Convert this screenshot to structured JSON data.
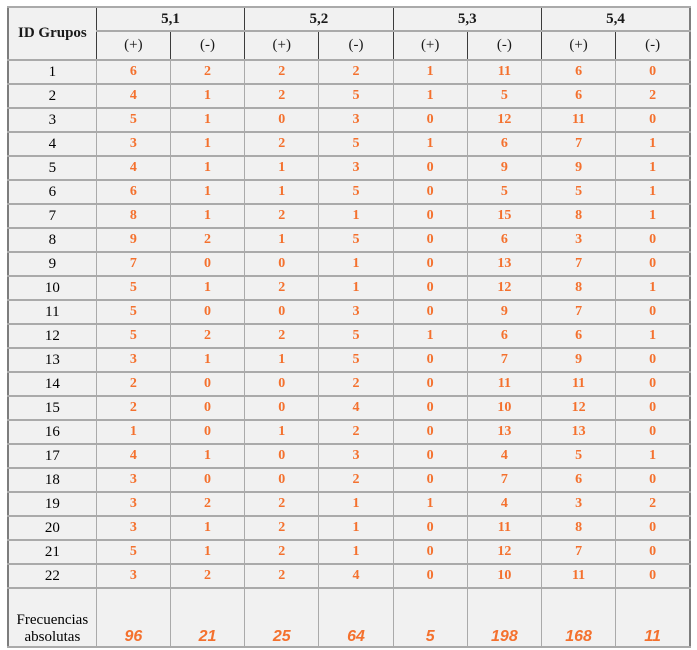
{
  "chart_data": {
    "type": "table",
    "title": "",
    "id_label": "ID Grupos",
    "group_labels": [
      "5,1",
      "5,2",
      "5,3",
      "5,4"
    ],
    "sign_labels": [
      "(+)",
      "(-)"
    ],
    "columns": [
      "ID Grupos",
      "5,1 (+)",
      "5,1 (-)",
      "5,2 (+)",
      "5,2 (-)",
      "5,3 (+)",
      "5,3 (-)",
      "5,4 (+)",
      "5,4 (-)"
    ],
    "row_ids": [
      "1",
      "2",
      "3",
      "4",
      "5",
      "6",
      "7",
      "8",
      "9",
      "10",
      "11",
      "12",
      "13",
      "14",
      "15",
      "16",
      "17",
      "18",
      "19",
      "20",
      "21",
      "22"
    ],
    "rows": [
      [
        6,
        2,
        2,
        2,
        1,
        11,
        6,
        0
      ],
      [
        4,
        1,
        2,
        5,
        1,
        5,
        6,
        2
      ],
      [
        5,
        1,
        0,
        3,
        0,
        12,
        11,
        0
      ],
      [
        3,
        1,
        2,
        5,
        1,
        6,
        7,
        1
      ],
      [
        4,
        1,
        1,
        3,
        0,
        9,
        9,
        1
      ],
      [
        6,
        1,
        1,
        5,
        0,
        5,
        5,
        1
      ],
      [
        8,
        1,
        2,
        1,
        0,
        15,
        8,
        1
      ],
      [
        9,
        2,
        1,
        5,
        0,
        6,
        3,
        0
      ],
      [
        7,
        0,
        0,
        1,
        0,
        13,
        7,
        0
      ],
      [
        5,
        1,
        2,
        1,
        0,
        12,
        8,
        1
      ],
      [
        5,
        0,
        0,
        3,
        0,
        9,
        7,
        0
      ],
      [
        5,
        2,
        2,
        5,
        1,
        6,
        6,
        1
      ],
      [
        3,
        1,
        1,
        5,
        0,
        7,
        9,
        0
      ],
      [
        2,
        0,
        0,
        2,
        0,
        11,
        11,
        0
      ],
      [
        2,
        0,
        0,
        4,
        0,
        10,
        12,
        0
      ],
      [
        1,
        0,
        1,
        2,
        0,
        13,
        13,
        0
      ],
      [
        4,
        1,
        0,
        3,
        0,
        4,
        5,
        1
      ],
      [
        3,
        0,
        0,
        2,
        0,
        7,
        6,
        0
      ],
      [
        3,
        2,
        2,
        1,
        1,
        4,
        3,
        2
      ],
      [
        3,
        1,
        2,
        1,
        0,
        11,
        8,
        0
      ],
      [
        5,
        1,
        2,
        1,
        0,
        12,
        7,
        0
      ],
      [
        3,
        2,
        2,
        4,
        0,
        10,
        11,
        0
      ]
    ],
    "footer_label": "Frecuencias absolutas",
    "footer_values": [
      96,
      21,
      25,
      64,
      5,
      198,
      168,
      11
    ]
  },
  "colors": {
    "value_text": "#F4712E",
    "cell_background": "#F1F1F1",
    "border": "#AAAAAA",
    "outer_border": "#7D7D7D",
    "header_text": "#1A1A1A"
  }
}
